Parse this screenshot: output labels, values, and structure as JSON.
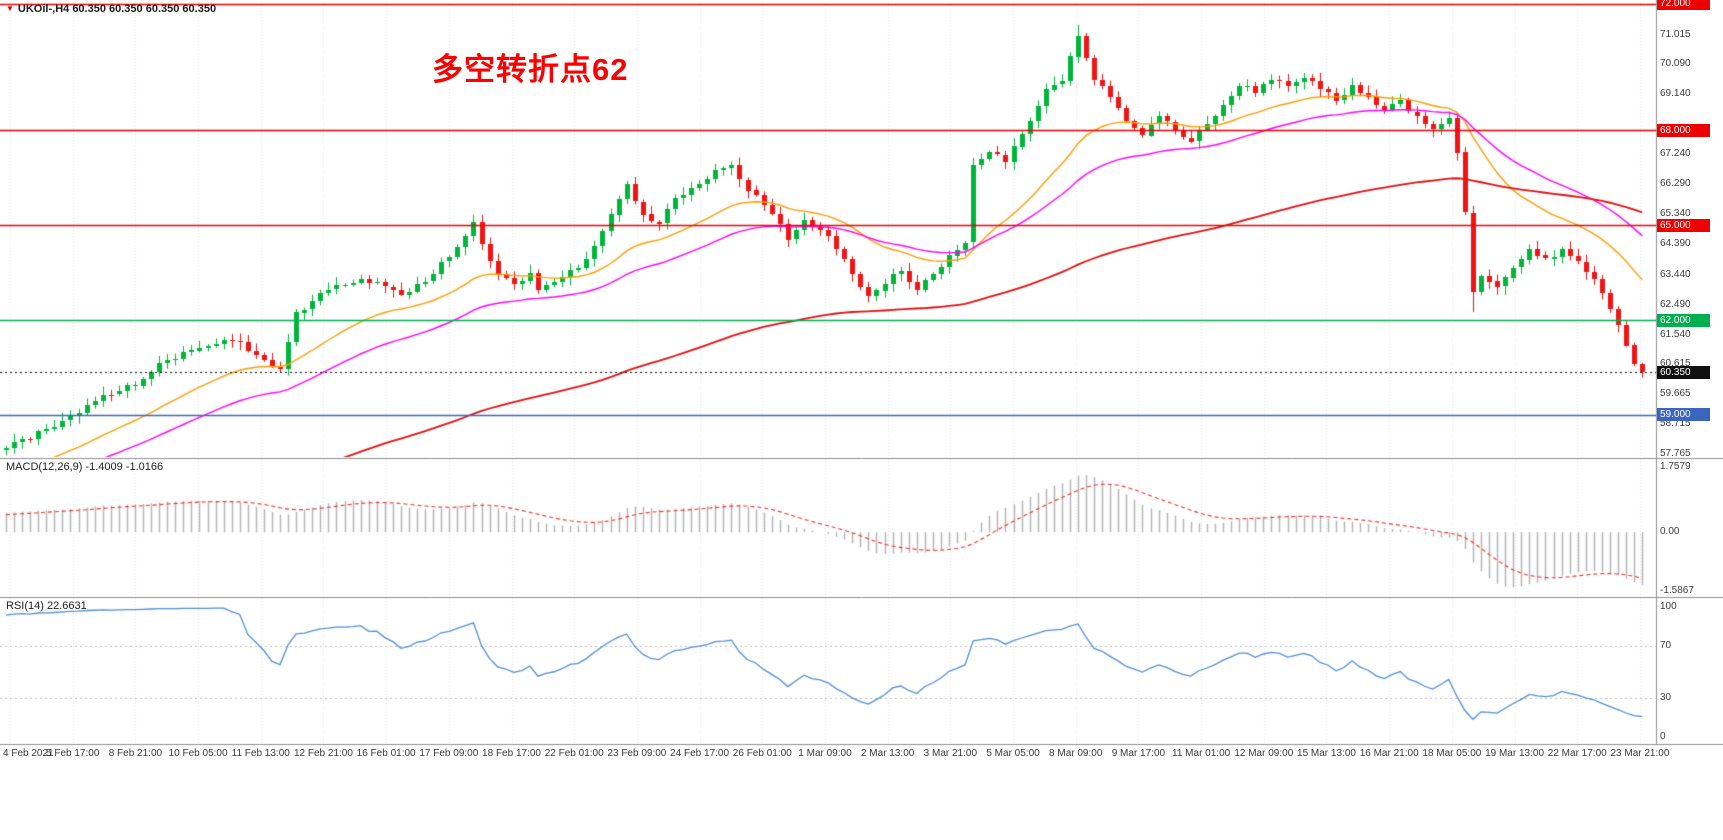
{
  "window": {
    "symbol_label": "UKOil-,H4 60.350 60.350 60.350 60.350"
  },
  "annotation": {
    "text": "多空转折点62",
    "color": "#ff0000"
  },
  "indicators": {
    "macd": {
      "label": "MACD(12,26,9) -1.4009 -1.0166"
    },
    "rsi": {
      "label": "RSI(14) 22.6631"
    }
  },
  "colors": {
    "up": "#00b43c",
    "down": "#f01414",
    "grid": "#e3e3e3",
    "axis_text": "#3c3c3c",
    "separator": "#8f8f8f",
    "macd_hist": "#b6b6b6",
    "macd_signal": "#ff2a2a",
    "rsi_line": "#4f8fd8",
    "bid": "#111111",
    "level_dots": "#c0c0c0"
  },
  "time_axis": {
    "labels": [
      "4 Feb 2021",
      "5 Feb 17:00",
      "8 Feb 21:00",
      "10 Feb 05:00",
      "11 Feb 13:00",
      "12 Feb 21:00",
      "16 Feb 01:00",
      "17 Feb 09:00",
      "18 Feb 17:00",
      "22 Feb 01:00",
      "23 Feb 09:00",
      "24 Feb 17:00",
      "26 Feb 01:00",
      "1 Mar 09:00",
      "2 Mar 13:00",
      "3 Mar 21:00",
      "5 Mar 05:00",
      "8 Mar 09:00",
      "9 Mar 17:00",
      "11 Mar 01:00",
      "12 Mar 09:00",
      "15 Mar 13:00",
      "16 Mar 21:00",
      "18 Mar 05:00",
      "19 Mar 13:00",
      "22 Mar 17:00",
      "23 Mar 21:00"
    ]
  },
  "chart_data": {
    "type": "candlestick",
    "symbol": "UKOil-",
    "timeframe": "H4",
    "candle_count": 204,
    "price_range_visible": [
      57.7,
      72.06
    ],
    "price_ticks": [
      {
        "v": 71.015,
        "label": "71.015"
      },
      {
        "v": 70.09,
        "label": "70.090"
      },
      {
        "v": 69.14,
        "label": "69.140"
      },
      {
        "v": 67.24,
        "label": "67.240"
      },
      {
        "v": 66.29,
        "label": "66.290"
      },
      {
        "v": 65.34,
        "label": "65.340"
      },
      {
        "v": 64.39,
        "label": "64.390"
      },
      {
        "v": 63.44,
        "label": "63.440"
      },
      {
        "v": 62.49,
        "label": "62.490"
      },
      {
        "v": 61.54,
        "label": "61.540"
      },
      {
        "v": 60.615,
        "label": "60.615"
      },
      {
        "v": 59.665,
        "label": "59.665"
      },
      {
        "v": 58.715,
        "label": "58.715"
      },
      {
        "v": 57.765,
        "label": "57.765"
      }
    ],
    "hlines": [
      {
        "value": 72.0,
        "label": "72.000",
        "color": "#ee0000"
      },
      {
        "value": 68.0,
        "label": "68.000",
        "color": "#ee0000"
      },
      {
        "value": 65.0,
        "label": "65.000",
        "color": "#ee0000"
      },
      {
        "value": 62.0,
        "label": "62.000",
        "color": "#00b050"
      },
      {
        "value": 59.0,
        "label": "59.000",
        "color": "#3a66c0"
      }
    ],
    "bid": {
      "value": 60.35,
      "label": "60.350"
    },
    "moving_averages": [
      {
        "period": 21,
        "color": "#ff9c00",
        "seed": 55.3
      },
      {
        "period": 40,
        "color": "#ff00ff",
        "seed": 55.3
      },
      {
        "period": 120,
        "color": "#e01010",
        "seed": 53.0
      }
    ],
    "close_waypoints": [
      [
        0,
        57.95
      ],
      [
        2,
        58.25
      ],
      [
        5,
        58.55
      ],
      [
        8,
        58.95
      ],
      [
        11,
        59.45
      ],
      [
        14,
        59.75
      ],
      [
        17,
        60.15
      ],
      [
        20,
        60.75
      ],
      [
        23,
        61.05
      ],
      [
        26,
        61.25
      ],
      [
        29,
        61.3
      ],
      [
        31,
        60.9
      ],
      [
        34,
        60.45
      ],
      [
        35,
        61.3
      ],
      [
        36,
        62.25
      ],
      [
        38,
        62.6
      ],
      [
        41,
        63.1
      ],
      [
        44,
        63.3
      ],
      [
        47,
        63.05
      ],
      [
        49,
        62.8
      ],
      [
        53,
        63.45
      ],
      [
        56,
        64.3
      ],
      [
        58,
        65.1
      ],
      [
        59,
        64.4
      ],
      [
        61,
        63.45
      ],
      [
        63,
        63.15
      ],
      [
        65,
        63.5
      ],
      [
        66,
        62.95
      ],
      [
        69,
        63.35
      ],
      [
        71,
        63.65
      ],
      [
        73,
        64.35
      ],
      [
        75,
        65.35
      ],
      [
        77,
        66.3
      ],
      [
        79,
        65.35
      ],
      [
        81,
        65.05
      ],
      [
        83,
        65.85
      ],
      [
        86,
        66.3
      ],
      [
        89,
        66.8
      ],
      [
        90,
        66.9
      ],
      [
        92,
        66.1
      ],
      [
        95,
        65.35
      ],
      [
        97,
        64.55
      ],
      [
        99,
        65.15
      ],
      [
        101,
        64.85
      ],
      [
        103,
        64.25
      ],
      [
        105,
        63.45
      ],
      [
        107,
        62.75
      ],
      [
        109,
        63.15
      ],
      [
        111,
        63.55
      ],
      [
        113,
        62.95
      ],
      [
        115,
        63.45
      ],
      [
        117,
        64.05
      ],
      [
        119,
        64.45
      ],
      [
        120,
        66.9
      ],
      [
        122,
        67.3
      ],
      [
        124,
        67.0
      ],
      [
        125,
        67.5
      ],
      [
        127,
        68.3
      ],
      [
        129,
        69.3
      ],
      [
        131,
        69.55
      ],
      [
        132,
        70.35
      ],
      [
        133,
        71.0
      ],
      [
        134,
        70.3
      ],
      [
        135,
        69.6
      ],
      [
        137,
        69.05
      ],
      [
        139,
        68.3
      ],
      [
        141,
        67.85
      ],
      [
        143,
        68.45
      ],
      [
        145,
        68.0
      ],
      [
        147,
        67.65
      ],
      [
        149,
        68.2
      ],
      [
        151,
        68.8
      ],
      [
        153,
        69.4
      ],
      [
        155,
        69.2
      ],
      [
        157,
        69.6
      ],
      [
        159,
        69.4
      ],
      [
        161,
        69.65
      ],
      [
        163,
        69.3
      ],
      [
        165,
        68.95
      ],
      [
        167,
        69.45
      ],
      [
        169,
        69.05
      ],
      [
        171,
        68.65
      ],
      [
        173,
        68.95
      ],
      [
        175,
        68.45
      ],
      [
        177,
        68.05
      ],
      [
        179,
        68.4
      ],
      [
        180,
        67.3
      ],
      [
        181,
        65.4
      ],
      [
        182,
        62.9
      ],
      [
        183,
        63.4
      ],
      [
        185,
        63.05
      ],
      [
        187,
        63.65
      ],
      [
        189,
        64.25
      ],
      [
        191,
        63.95
      ],
      [
        193,
        64.25
      ],
      [
        195,
        63.85
      ],
      [
        197,
        63.3
      ],
      [
        198,
        62.85
      ],
      [
        199,
        62.35
      ],
      [
        200,
        61.85
      ],
      [
        201,
        61.2
      ],
      [
        202,
        60.6
      ],
      [
        203,
        60.35
      ]
    ],
    "spikes": {
      "58": {
        "high": 65.33
      },
      "90": {
        "high": 67.02
      },
      "133": {
        "high": 71.34
      },
      "182": {
        "low": 62.25
      },
      "203": {
        "low": 60.18
      }
    },
    "warmup": {
      "count": 30,
      "from": 55.3,
      "to": 57.8
    },
    "noise": 0.22,
    "macd": {
      "params": [
        12,
        26,
        9
      ],
      "display_main": "-1.4009",
      "display_signal": "-1.0166",
      "axis_max": 1.7579,
      "axis_min": -1.5867,
      "axis_labels": [
        {
          "v": 1.7579,
          "label": "1.7579"
        },
        {
          "v": 0,
          "label": "0.00"
        },
        {
          "v": -1.5867,
          "label": "-1.5867"
        }
      ]
    },
    "rsi": {
      "period": 14,
      "display_value": "22.6631",
      "levels": [
        70,
        30
      ],
      "axis_labels": [
        {
          "v": 100,
          "label": "100"
        },
        {
          "v": 70,
          "label": "70"
        },
        {
          "v": 30,
          "label": "30"
        },
        {
          "v": 0,
          "label": "0"
        }
      ]
    }
  }
}
